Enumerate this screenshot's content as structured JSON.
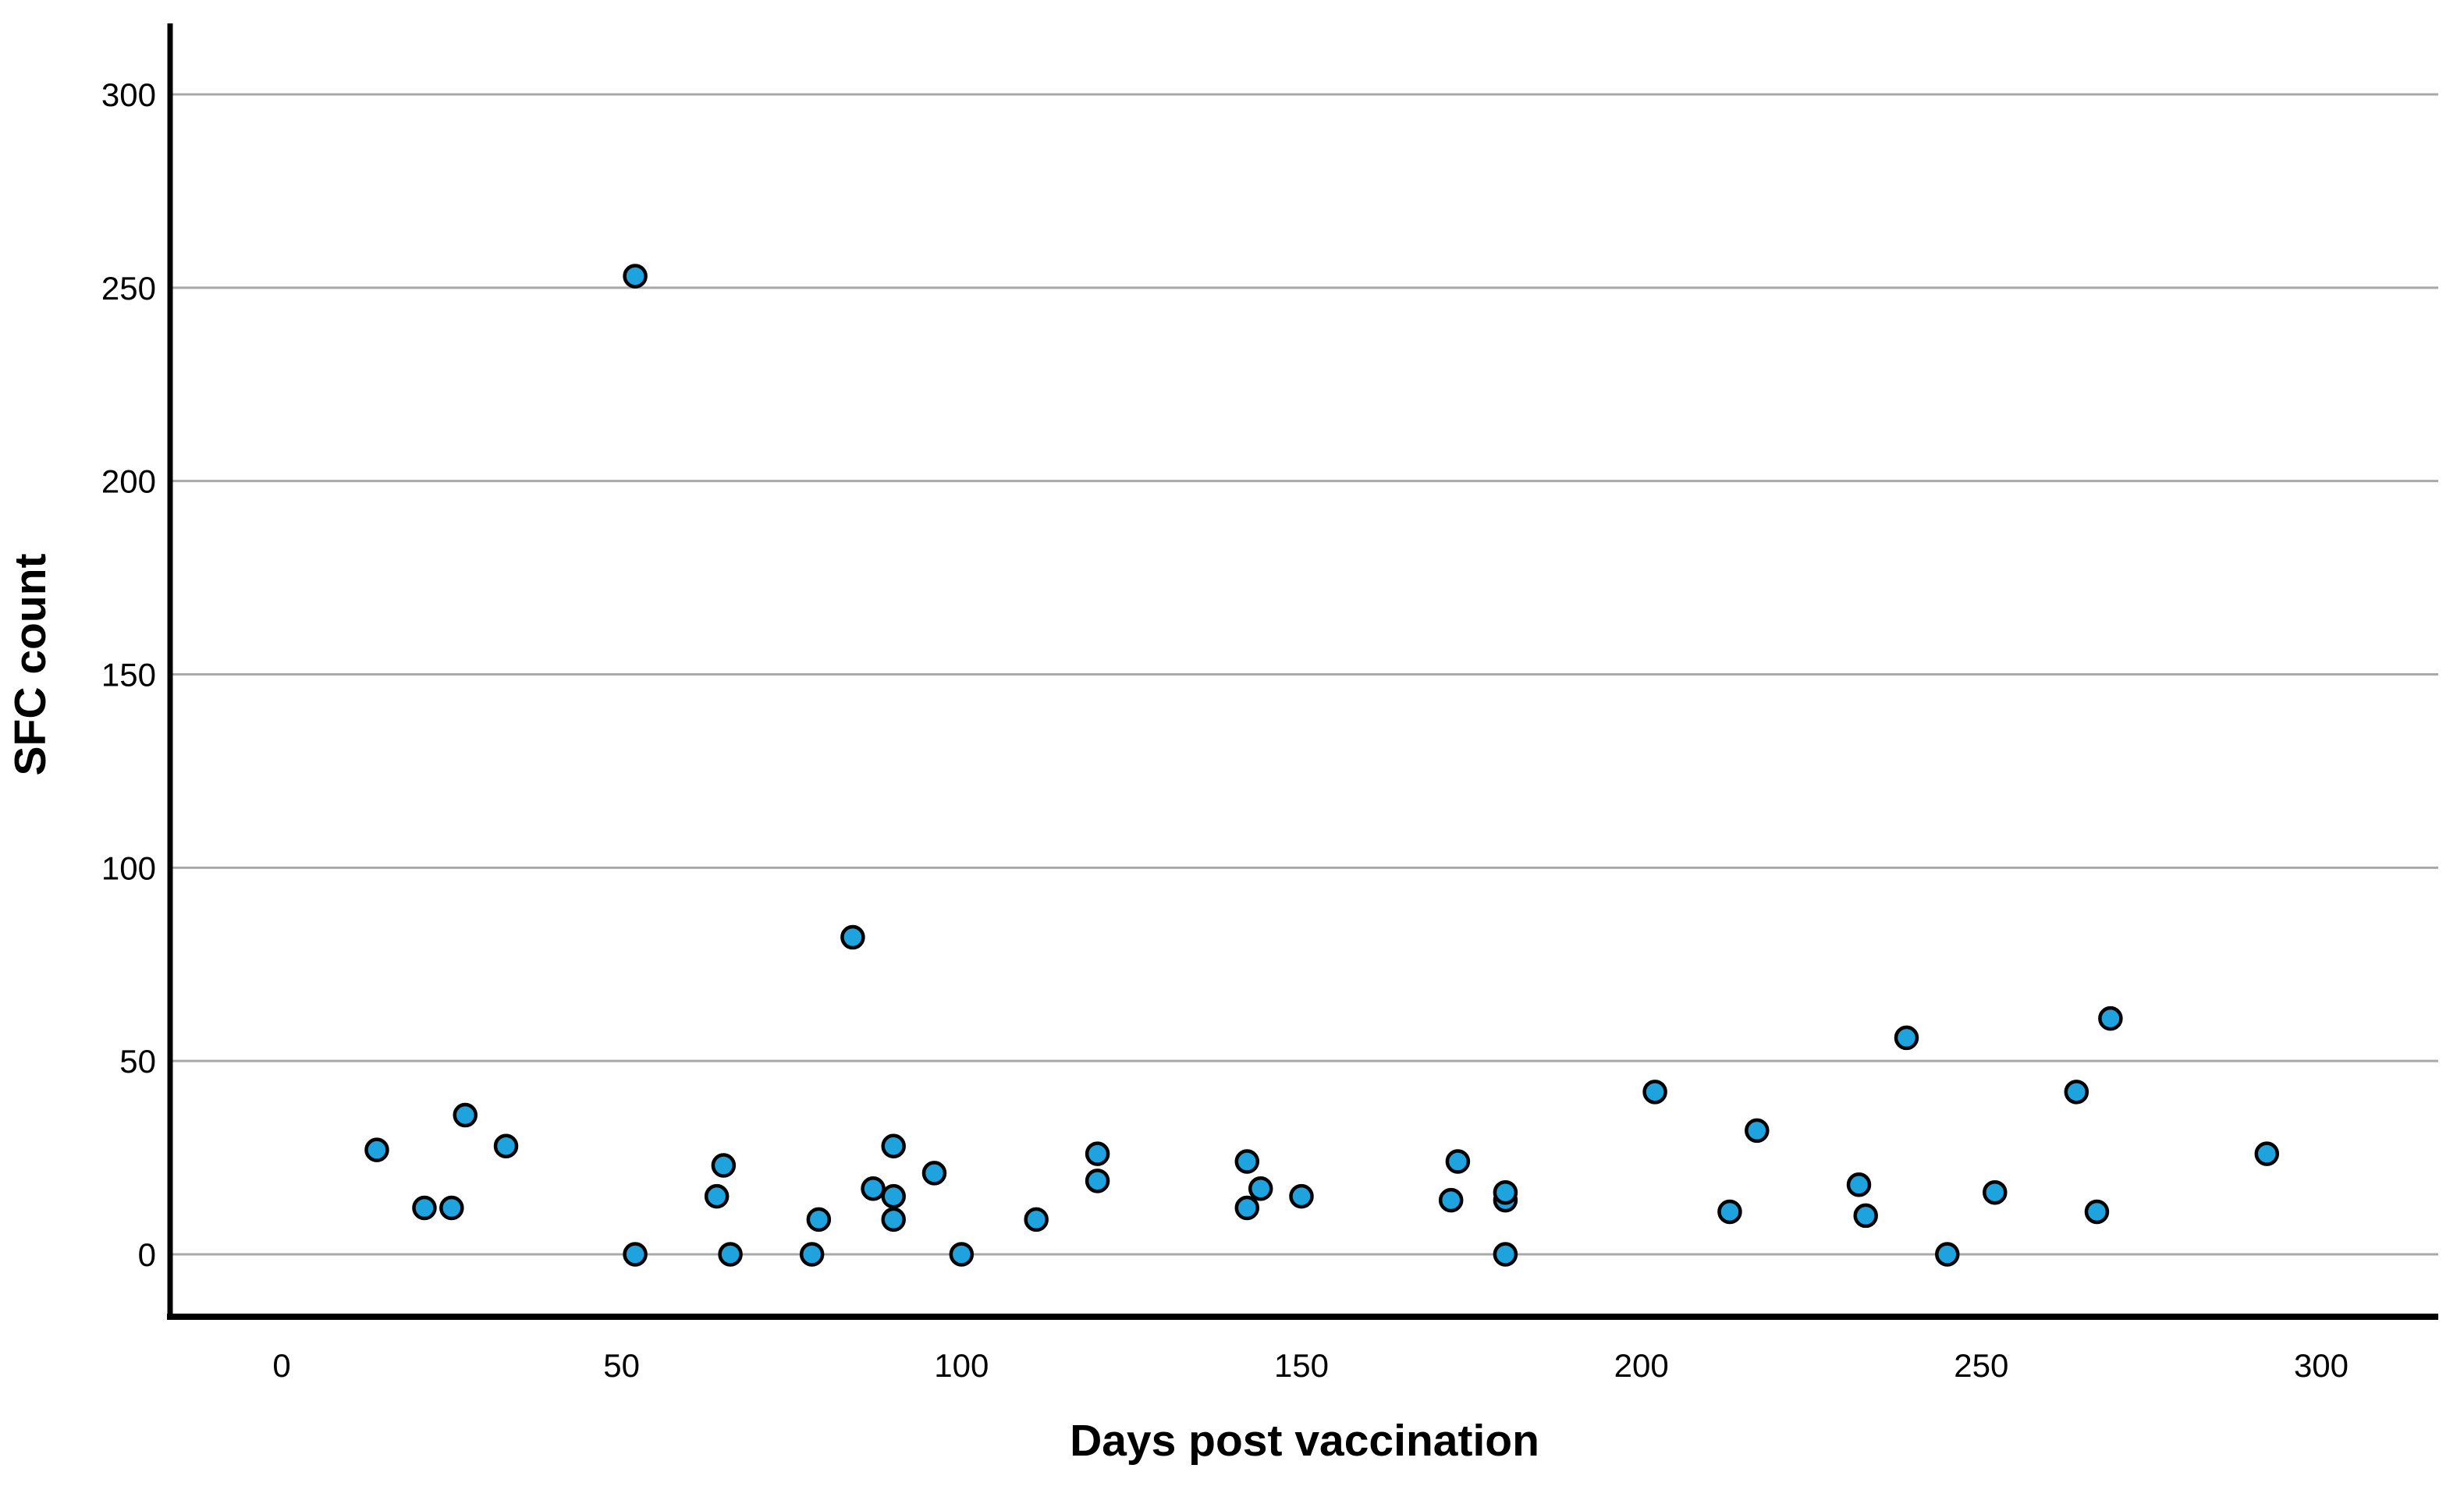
{
  "chart_data": {
    "type": "scatter",
    "title": "",
    "xlabel": "Days post vaccination",
    "ylabel": "SFC count",
    "xlim": [
      -16,
      317
    ],
    "ylim": [
      -16,
      318
    ],
    "xticks": [
      0,
      50,
      100,
      150,
      200,
      250,
      300
    ],
    "yticks": [
      0,
      50,
      100,
      150,
      200,
      250,
      300
    ],
    "grid": "horizontal-only",
    "legend": "none",
    "marker": {
      "shape": "circle",
      "fill": "#1EA3DE",
      "stroke": "#000000"
    },
    "colors": {
      "gridline": "#A9A9A9",
      "axis": "#000000",
      "background": "#FFFFFF"
    },
    "points": [
      [
        14,
        27
      ],
      [
        21,
        12
      ],
      [
        25,
        12
      ],
      [
        27,
        36
      ],
      [
        33,
        28
      ],
      [
        52,
        0
      ],
      [
        52,
        253
      ],
      [
        64,
        15
      ],
      [
        65,
        23
      ],
      [
        66,
        0
      ],
      [
        78,
        0
      ],
      [
        79,
        9
      ],
      [
        84,
        82
      ],
      [
        87,
        17
      ],
      [
        90,
        9
      ],
      [
        90,
        15
      ],
      [
        90,
        28
      ],
      [
        96,
        21
      ],
      [
        100,
        0
      ],
      [
        111,
        9
      ],
      [
        120,
        19
      ],
      [
        120,
        26
      ],
      [
        142,
        12
      ],
      [
        142,
        24
      ],
      [
        144,
        17
      ],
      [
        150,
        15
      ],
      [
        172,
        14
      ],
      [
        173,
        24
      ],
      [
        180,
        0
      ],
      [
        180,
        14
      ],
      [
        180,
        16
      ],
      [
        202,
        42
      ],
      [
        213,
        11
      ],
      [
        217,
        32
      ],
      [
        232,
        18
      ],
      [
        233,
        10
      ],
      [
        239,
        56
      ],
      [
        245,
        0
      ],
      [
        252,
        16
      ],
      [
        264,
        42
      ],
      [
        267,
        11
      ],
      [
        269,
        61
      ],
      [
        292,
        26
      ]
    ]
  }
}
